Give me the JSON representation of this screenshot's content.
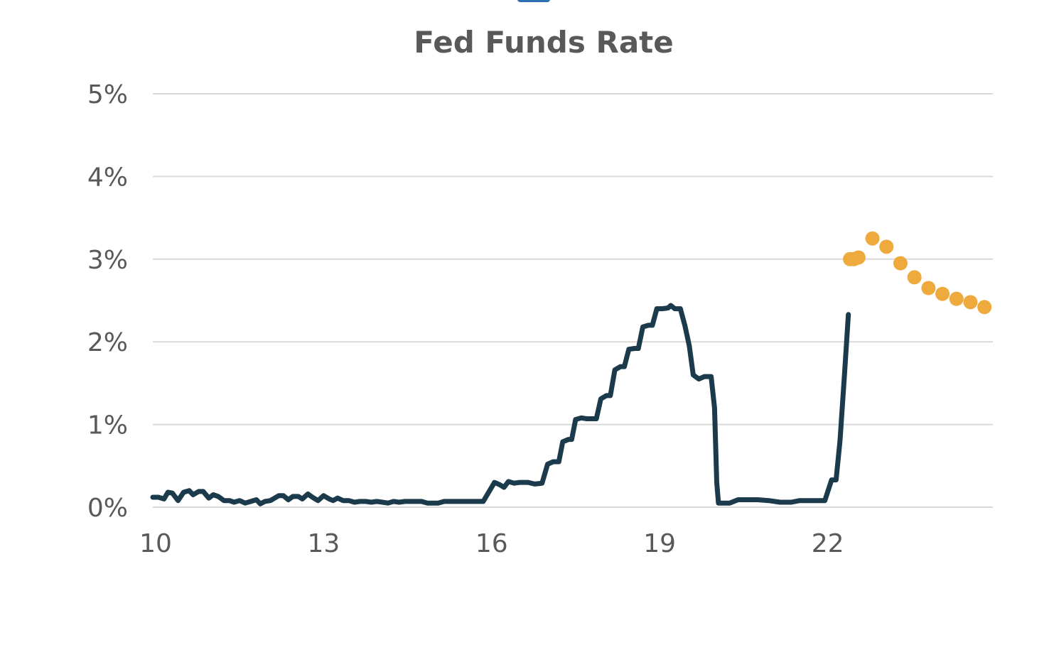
{
  "chart_data": {
    "type": "line",
    "title": "Fed Funds Rate",
    "xlabel": "",
    "ylabel": "",
    "xlim": [
      10.0,
      25.0
    ],
    "ylim": [
      0,
      5
    ],
    "x_ticks": [
      {
        "value": 10,
        "label": "10"
      },
      {
        "value": 13,
        "label": "13"
      },
      {
        "value": 16,
        "label": "16"
      },
      {
        "value": 19,
        "label": "19"
      },
      {
        "value": 22,
        "label": "22"
      }
    ],
    "y_ticks": [
      {
        "value": 0,
        "label": "0%"
      },
      {
        "value": 1,
        "label": "1%"
      },
      {
        "value": 2,
        "label": "2%"
      },
      {
        "value": 3,
        "label": "3%"
      },
      {
        "value": 4,
        "label": "4%"
      },
      {
        "value": 5,
        "label": "5%"
      }
    ],
    "grid": true,
    "legend": "none",
    "series": [
      {
        "style": "line",
        "color": "#1b3a4b",
        "points": [
          [
            10.0,
            0.12
          ],
          [
            10.1,
            0.12
          ],
          [
            10.2,
            0.1
          ],
          [
            10.27,
            0.18
          ],
          [
            10.35,
            0.17
          ],
          [
            10.45,
            0.08
          ],
          [
            10.55,
            0.18
          ],
          [
            10.65,
            0.2
          ],
          [
            10.72,
            0.15
          ],
          [
            10.82,
            0.19
          ],
          [
            10.9,
            0.19
          ],
          [
            11.0,
            0.11
          ],
          [
            11.08,
            0.15
          ],
          [
            11.17,
            0.13
          ],
          [
            11.27,
            0.08
          ],
          [
            11.37,
            0.08
          ],
          [
            11.45,
            0.06
          ],
          [
            11.55,
            0.08
          ],
          [
            11.65,
            0.05
          ],
          [
            11.75,
            0.07
          ],
          [
            11.85,
            0.09
          ],
          [
            11.92,
            0.04
          ],
          [
            12.0,
            0.07
          ],
          [
            12.1,
            0.08
          ],
          [
            12.15,
            0.1
          ],
          [
            12.25,
            0.14
          ],
          [
            12.33,
            0.14
          ],
          [
            12.42,
            0.09
          ],
          [
            12.5,
            0.13
          ],
          [
            12.6,
            0.13
          ],
          [
            12.67,
            0.1
          ],
          [
            12.77,
            0.16
          ],
          [
            12.85,
            0.12
          ],
          [
            12.95,
            0.08
          ],
          [
            13.05,
            0.14
          ],
          [
            13.15,
            0.1
          ],
          [
            13.22,
            0.08
          ],
          [
            13.3,
            0.11
          ],
          [
            13.4,
            0.08
          ],
          [
            13.5,
            0.08
          ],
          [
            13.6,
            0.06
          ],
          [
            13.7,
            0.07
          ],
          [
            13.8,
            0.07
          ],
          [
            13.9,
            0.06
          ],
          [
            14.0,
            0.07
          ],
          [
            14.1,
            0.06
          ],
          [
            14.2,
            0.05
          ],
          [
            14.3,
            0.07
          ],
          [
            14.4,
            0.06
          ],
          [
            14.5,
            0.07
          ],
          [
            14.6,
            0.07
          ],
          [
            14.8,
            0.07
          ],
          [
            14.9,
            0.05
          ],
          [
            15.0,
            0.05
          ],
          [
            15.1,
            0.05
          ],
          [
            15.2,
            0.07
          ],
          [
            15.4,
            0.07
          ],
          [
            15.6,
            0.07
          ],
          [
            15.8,
            0.07
          ],
          [
            15.9,
            0.07
          ],
          [
            16.05,
            0.24
          ],
          [
            16.1,
            0.3
          ],
          [
            16.2,
            0.27
          ],
          [
            16.27,
            0.24
          ],
          [
            16.35,
            0.31
          ],
          [
            16.45,
            0.29
          ],
          [
            16.55,
            0.3
          ],
          [
            16.7,
            0.3
          ],
          [
            16.82,
            0.28
          ],
          [
            16.95,
            0.29
          ],
          [
            17.05,
            0.52
          ],
          [
            17.15,
            0.55
          ],
          [
            17.25,
            0.55
          ],
          [
            17.32,
            0.79
          ],
          [
            17.42,
            0.82
          ],
          [
            17.48,
            0.82
          ],
          [
            17.55,
            1.06
          ],
          [
            17.65,
            1.08
          ],
          [
            17.75,
            1.07
          ],
          [
            17.82,
            1.07
          ],
          [
            17.92,
            1.07
          ],
          [
            18.0,
            1.31
          ],
          [
            18.1,
            1.35
          ],
          [
            18.17,
            1.35
          ],
          [
            18.25,
            1.66
          ],
          [
            18.35,
            1.7
          ],
          [
            18.42,
            1.7
          ],
          [
            18.5,
            1.91
          ],
          [
            18.6,
            1.92
          ],
          [
            18.67,
            1.92
          ],
          [
            18.75,
            2.18
          ],
          [
            18.85,
            2.2
          ],
          [
            18.92,
            2.2
          ],
          [
            19.0,
            2.4
          ],
          [
            19.1,
            2.4
          ],
          [
            19.2,
            2.41
          ],
          [
            19.25,
            2.44
          ],
          [
            19.32,
            2.4
          ],
          [
            19.42,
            2.4
          ],
          [
            19.5,
            2.2
          ],
          [
            19.58,
            1.95
          ],
          [
            19.65,
            1.6
          ],
          [
            19.75,
            1.55
          ],
          [
            19.85,
            1.58
          ],
          [
            19.97,
            1.58
          ],
          [
            20.03,
            1.2
          ],
          [
            20.07,
            0.3
          ],
          [
            20.1,
            0.05
          ],
          [
            20.2,
            0.05
          ],
          [
            20.3,
            0.05
          ],
          [
            20.45,
            0.09
          ],
          [
            20.6,
            0.09
          ],
          [
            20.8,
            0.09
          ],
          [
            21.0,
            0.08
          ],
          [
            21.2,
            0.06
          ],
          [
            21.4,
            0.06
          ],
          [
            21.55,
            0.08
          ],
          [
            21.75,
            0.08
          ],
          [
            21.85,
            0.08
          ],
          [
            22.0,
            0.08
          ],
          [
            22.12,
            0.33
          ],
          [
            22.2,
            0.33
          ],
          [
            22.27,
            0.8
          ],
          [
            22.35,
            1.6
          ],
          [
            22.42,
            2.33
          ]
        ]
      },
      {
        "style": "dots",
        "color": "#eeaa3c",
        "points": [
          [
            22.45,
            3.0
          ],
          [
            22.52,
            3.0
          ],
          [
            22.6,
            3.02
          ],
          [
            22.85,
            3.25
          ],
          [
            23.1,
            3.15
          ],
          [
            23.35,
            2.95
          ],
          [
            23.6,
            2.78
          ],
          [
            23.85,
            2.65
          ],
          [
            24.1,
            2.58
          ],
          [
            24.35,
            2.52
          ],
          [
            24.6,
            2.48
          ],
          [
            24.85,
            2.42
          ]
        ]
      }
    ]
  }
}
